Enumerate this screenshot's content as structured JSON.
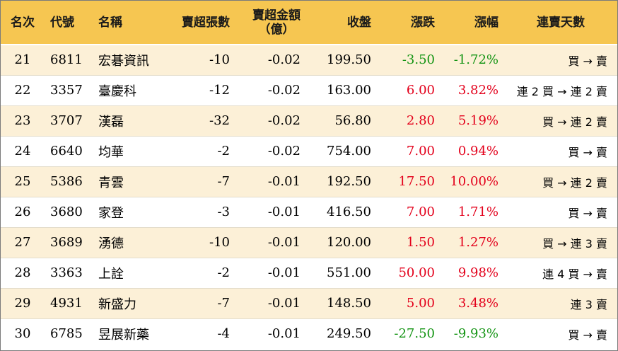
{
  "headers": {
    "rank": "名次",
    "code": "代號",
    "name": "名稱",
    "net_sell_lots": "賣超張數",
    "net_sell_amount_line1": "賣超金額",
    "net_sell_amount_line2": "（億）",
    "close": "收盤",
    "change": "漲跌",
    "change_pct": "漲幅",
    "streak": "連賣天數"
  },
  "colors": {
    "header_bg": "#f6c651",
    "row_alt_bg": "#fcf0d7",
    "up": "#e3001b",
    "down": "#139413"
  },
  "rows": [
    {
      "rank": "21",
      "code": "6811",
      "name": "宏碁資訊",
      "lots": "-10",
      "amount": "-0.02",
      "close": "199.50",
      "change": "-3.50",
      "pct": "-1.72%",
      "dir": "down",
      "streak": "買 → 賣"
    },
    {
      "rank": "22",
      "code": "3357",
      "name": "臺慶科",
      "lots": "-12",
      "amount": "-0.02",
      "close": "163.00",
      "change": "6.00",
      "pct": "3.82%",
      "dir": "up",
      "streak": "連 2 買 → 連 2 賣"
    },
    {
      "rank": "23",
      "code": "3707",
      "name": "漢磊",
      "lots": "-32",
      "amount": "-0.02",
      "close": "56.80",
      "change": "2.80",
      "pct": "5.19%",
      "dir": "up",
      "streak": "買 → 連 2 賣"
    },
    {
      "rank": "24",
      "code": "6640",
      "name": "均華",
      "lots": "-2",
      "amount": "-0.02",
      "close": "754.00",
      "change": "7.00",
      "pct": "0.94%",
      "dir": "up",
      "streak": "買 → 賣"
    },
    {
      "rank": "25",
      "code": "5386",
      "name": "青雲",
      "lots": "-7",
      "amount": "-0.01",
      "close": "192.50",
      "change": "17.50",
      "pct": "10.00%",
      "dir": "up",
      "streak": "買 → 連 2 賣"
    },
    {
      "rank": "26",
      "code": "3680",
      "name": "家登",
      "lots": "-3",
      "amount": "-0.01",
      "close": "416.50",
      "change": "7.00",
      "pct": "1.71%",
      "dir": "up",
      "streak": "買 → 賣"
    },
    {
      "rank": "27",
      "code": "3689",
      "name": "湧德",
      "lots": "-10",
      "amount": "-0.01",
      "close": "120.00",
      "change": "1.50",
      "pct": "1.27%",
      "dir": "up",
      "streak": "買 → 連 3 賣"
    },
    {
      "rank": "28",
      "code": "3363",
      "name": "上詮",
      "lots": "-2",
      "amount": "-0.01",
      "close": "551.00",
      "change": "50.00",
      "pct": "9.98%",
      "dir": "up",
      "streak": "連 4 買 → 賣"
    },
    {
      "rank": "29",
      "code": "4931",
      "name": "新盛力",
      "lots": "-7",
      "amount": "-0.01",
      "close": "148.50",
      "change": "5.00",
      "pct": "3.48%",
      "dir": "up",
      "streak": "連 3 賣"
    },
    {
      "rank": "30",
      "code": "6785",
      "name": "昱展新藥",
      "lots": "-4",
      "amount": "-0.01",
      "close": "249.50",
      "change": "-27.50",
      "pct": "-9.93%",
      "dir": "down",
      "streak": "買 → 賣"
    }
  ]
}
